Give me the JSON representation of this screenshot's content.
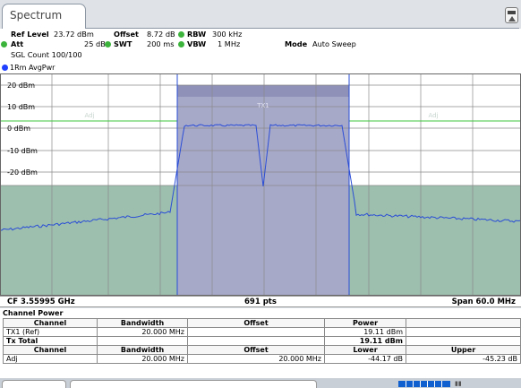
{
  "tab": {
    "title": "Spectrum"
  },
  "header": {
    "ref_level_label": "Ref Level",
    "ref_level_value": "23.72 dBm",
    "offset_label": "Offset",
    "offset_value": "8.72 dB",
    "rbw_label": "RBW",
    "rbw_value": "300 kHz",
    "att_label": "Att",
    "att_value": "25 dB",
    "swt_label": "SWT",
    "swt_value": "200 ms",
    "vbw_label": "VBW",
    "vbw_value": "1 MHz",
    "mode_label": "Mode",
    "mode_value": "Auto Sweep",
    "sgl_count": "SGL Count 100/100"
  },
  "trace": {
    "label": "1Rm AvgPwr"
  },
  "plot": {
    "y_labels": [
      "20 dBm",
      "10 dBm",
      "0 dBm",
      "-10 dBm",
      "-20 dBm"
    ],
    "tx_label": "TX1",
    "adj_label": "Adj",
    "colors": {
      "tx_fill": "#a7a9c9",
      "adj_fill": "#9dbfae",
      "trace": "#2a4dd6",
      "limit_green": "#3cc43c"
    }
  },
  "footer": {
    "cf": "CF 3.55995 GHz",
    "pts": "691 pts",
    "span": "Span 60.0 MHz"
  },
  "channel_power": {
    "title": "Channel Power",
    "header1": {
      "channel": "Channel",
      "bandwidth": "Bandwidth",
      "offset": "Offset",
      "power": "Power"
    },
    "tx_row": {
      "channel": "TX1 (Ref)",
      "bandwidth": "20.000 MHz",
      "offset": "",
      "power": "19.11 dBm"
    },
    "tx_total": {
      "label": "Tx Total",
      "power": "19.11 dBm"
    },
    "header2": {
      "channel": "Channel",
      "bandwidth": "Bandwidth",
      "offset": "Offset",
      "lower": "Lower",
      "upper": "Upper"
    },
    "adj_row": {
      "channel": "Adj",
      "bandwidth": "20.000 MHz",
      "offset": "20.000 MHz",
      "lower": "-44.17 dB",
      "upper": "-45.23 dB"
    }
  }
}
